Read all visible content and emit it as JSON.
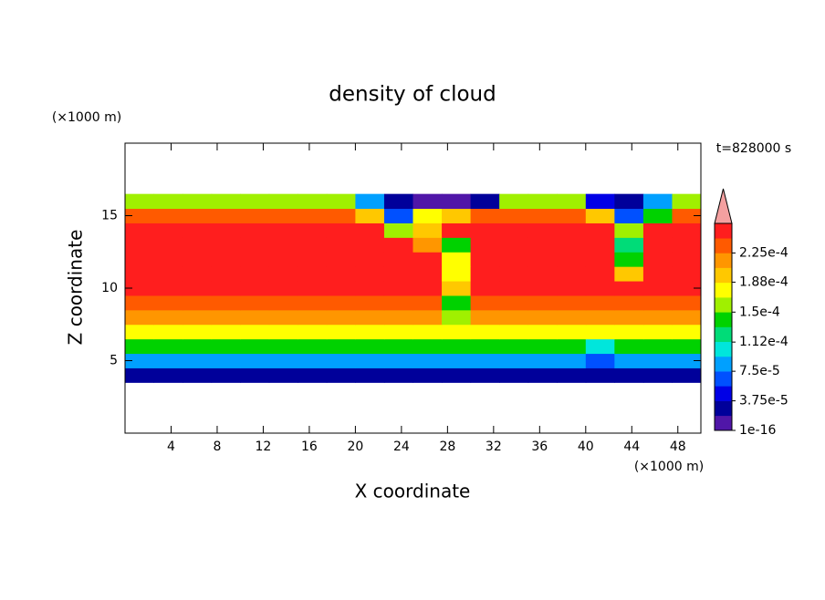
{
  "chart_data": {
    "type": "contour",
    "title": "density of cloud",
    "x_label": "X coordinate",
    "y_label": "Z coordinate",
    "x_unit": "(×1000 m)",
    "y_unit": "(×1000 m)",
    "annotation": "t=828000 s",
    "xlim": [
      0,
      50
    ],
    "ylim": [
      0,
      20
    ],
    "xticks": [
      4,
      8,
      12,
      16,
      20,
      24,
      28,
      32,
      36,
      40,
      44,
      48
    ],
    "yticks": [
      5,
      10,
      15
    ],
    "x_edges": [
      0,
      2.5,
      5,
      7.5,
      10,
      12.5,
      15,
      17.5,
      20,
      22.5,
      25,
      27.5,
      30,
      32.5,
      35,
      37.5,
      40,
      42.5,
      45,
      47.5,
      50
    ],
    "y_edges": [
      3.5,
      4.5,
      5.5,
      6.5,
      7.5,
      8.5,
      9.5,
      10.5,
      11.5,
      12.5,
      13.5,
      14.5,
      15.5,
      16.5
    ],
    "z": [
      [
        3e-05,
        3e-05,
        3e-05,
        3e-05,
        3e-05,
        3e-05,
        3e-05,
        3e-05,
        3e-05,
        3e-05,
        3e-05,
        3e-05,
        3e-05,
        3e-05,
        3e-05,
        3e-05,
        3e-05,
        3e-05,
        3e-05,
        3e-05
      ],
      [
        8e-05,
        8e-05,
        8e-05,
        8e-05,
        8e-05,
        8e-05,
        8e-05,
        8e-05,
        8e-05,
        8e-05,
        8e-05,
        8e-05,
        8e-05,
        8e-05,
        8e-05,
        8e-05,
        6e-05,
        8e-05,
        8e-05,
        8e-05
      ],
      [
        0.000135,
        0.000135,
        0.000135,
        0.000135,
        0.000135,
        0.000135,
        0.000135,
        0.000135,
        0.000135,
        0.000135,
        0.000135,
        0.000135,
        0.000135,
        0.000135,
        0.000135,
        0.000135,
        0.00011,
        0.000135,
        0.000135,
        0.000135
      ],
      [
        0.00018,
        0.00018,
        0.00018,
        0.00018,
        0.00018,
        0.00018,
        0.00018,
        0.00018,
        0.00018,
        0.00018,
        0.00018,
        0.00018,
        0.00018,
        0.00018,
        0.00018,
        0.00018,
        0.00018,
        0.00018,
        0.00018,
        0.00018
      ],
      [
        0.00021,
        0.00021,
        0.00021,
        0.00021,
        0.00021,
        0.00021,
        0.00021,
        0.00021,
        0.00021,
        0.00021,
        0.00021,
        0.00016,
        0.00021,
        0.00021,
        0.00021,
        0.00021,
        0.00021,
        0.00021,
        0.00021,
        0.00021
      ],
      [
        0.00023,
        0.00023,
        0.00023,
        0.00023,
        0.00023,
        0.00023,
        0.00023,
        0.00023,
        0.00023,
        0.00023,
        0.00023,
        0.00014,
        0.00023,
        0.00023,
        0.00023,
        0.00023,
        0.00023,
        0.00023,
        0.00023,
        0.00023
      ],
      [
        0.000245,
        0.000245,
        0.000245,
        0.000245,
        0.000245,
        0.000245,
        0.000245,
        0.000245,
        0.000245,
        0.000245,
        0.000245,
        0.00019,
        0.000245,
        0.000245,
        0.000245,
        0.000245,
        0.000245,
        0.000245,
        0.000245,
        0.000245
      ],
      [
        0.000245,
        0.000245,
        0.000245,
        0.000245,
        0.000245,
        0.000245,
        0.000245,
        0.000245,
        0.000245,
        0.000245,
        0.000245,
        0.00017,
        0.000245,
        0.000245,
        0.000245,
        0.000245,
        0.000245,
        0.0002,
        0.000245,
        0.000245
      ],
      [
        0.000245,
        0.000245,
        0.000245,
        0.000245,
        0.000245,
        0.000245,
        0.000245,
        0.000245,
        0.000245,
        0.000245,
        0.000245,
        0.00018,
        0.000245,
        0.000245,
        0.000245,
        0.000245,
        0.000245,
        0.00015,
        0.000245,
        0.000245
      ],
      [
        0.000245,
        0.000245,
        0.000245,
        0.000245,
        0.000245,
        0.000245,
        0.000245,
        0.000245,
        0.000245,
        0.000245,
        0.00021,
        0.00015,
        0.000245,
        0.000245,
        0.000245,
        0.000245,
        0.000245,
        0.00012,
        0.000245,
        0.000245
      ],
      [
        0.000245,
        0.000245,
        0.000245,
        0.000245,
        0.000245,
        0.000245,
        0.000245,
        0.000245,
        0.000245,
        0.00016,
        0.00019,
        0.000245,
        0.000245,
        0.000245,
        0.000245,
        0.000245,
        0.000245,
        0.00016,
        0.000245,
        0.000245
      ],
      [
        0.00023,
        0.00023,
        0.00023,
        0.00023,
        0.00023,
        0.00023,
        0.00023,
        0.00023,
        0.00019,
        6e-05,
        0.00017,
        0.0002,
        0.00023,
        0.00023,
        0.00023,
        0.00023,
        0.00019,
        7e-05,
        0.00015,
        0.00023
      ],
      [
        0.00016,
        0.00016,
        0.00016,
        0.00016,
        0.00016,
        0.00016,
        0.00016,
        0.00016,
        9e-05,
        2e-05,
        1e-05,
        1e-05,
        3e-05,
        0.00016,
        0.00016,
        0.00016,
        4e-05,
        2e-05,
        9e-05,
        0.00016
      ]
    ],
    "colorbar": {
      "clim": [
        1e-16,
        0.0002625
      ],
      "colors": [
        "#5016a8",
        "#00009a",
        "#0000e6",
        "#0050ff",
        "#00a0ff",
        "#00e6dc",
        "#00dc78",
        "#00d200",
        "#a0f000",
        "#ffff00",
        "#ffc800",
        "#ff9600",
        "#ff5a00",
        "#ff1e1e"
      ],
      "over_color": "#f4a0a0",
      "ticks": [
        1e-16,
        {
          "value": 3.75e-05,
          "label": "3.75e-5"
        },
        {
          "value": 7.5e-05,
          "label": "7.5e-5"
        },
        {
          "value": 0.000112,
          "label": "1.12e-4"
        },
        {
          "value": 0.00015,
          "label": "1.5e-4"
        },
        {
          "value": 0.000188,
          "label": "1.88e-4"
        },
        {
          "value": 0.000225,
          "label": "2.25e-4"
        }
      ]
    }
  }
}
